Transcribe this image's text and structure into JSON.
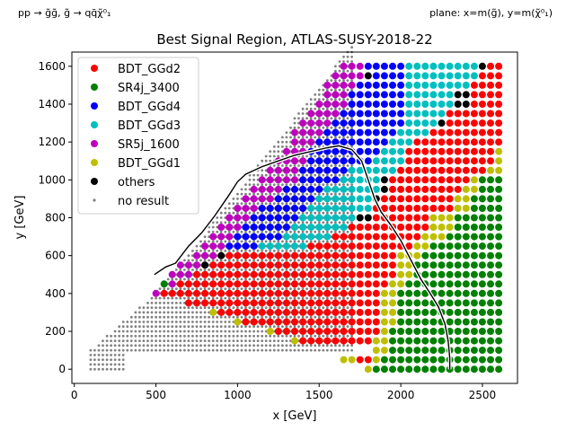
{
  "header": {
    "left_note": "pp → g̃g̃, g̃ → qq̄χ̃⁰₁",
    "right_note": "plane: x=m(g̃), y=m(χ̃⁰₁)"
  },
  "chart_data": {
    "type": "scatter",
    "title": "Best Signal Region, ATLAS-SUSY-2018-22",
    "xlabel": "x [GeV]",
    "ylabel": "y [GeV]",
    "xlim": [
      -15,
      2715
    ],
    "ylim": [
      -75,
      1675
    ],
    "xticks": [
      0,
      500,
      1000,
      1500,
      2000,
      2500
    ],
    "yticks": [
      0,
      200,
      400,
      600,
      800,
      1000,
      1200,
      1400,
      1600
    ],
    "grid": false,
    "legend_position": "top-left",
    "colors": {
      "BDT_GGd2": "#ff0000",
      "SR4j_3400": "#008000",
      "BDT_GGd4": "#0000ff",
      "BDT_GGd3": "#00bfbf",
      "SR5j_1600": "#bf00bf",
      "BDT_GGd1": "#bfbf00",
      "others": "#000000",
      "no result": "#808080",
      "exclusion_line": "#000000"
    },
    "legend": [
      "BDT_GGd2",
      "SR4j_3400",
      "BDT_GGd4",
      "BDT_GGd3",
      "SR5j_1600",
      "BDT_GGd1",
      "others",
      "no result"
    ],
    "grid_x_start": 500,
    "grid_x_end": 2600,
    "grid_y_start": 0,
    "grid_y_end": 1600,
    "grid_step": 50,
    "region_rows": [
      {
        "y": 1600,
        "segments": [
          [
            "SR5j_1600",
            1650,
            1750
          ],
          [
            "BDT_GGd4",
            1800,
            2000
          ],
          [
            "BDT_GGd3",
            2050,
            2450
          ],
          [
            "others",
            2500,
            2500
          ],
          [
            "BDT_GGd2",
            2550,
            2600
          ]
        ]
      },
      {
        "y": 1550,
        "segments": [
          [
            "SR5j_1600",
            1600,
            1750
          ],
          [
            "others",
            1800,
            1800
          ],
          [
            "BDT_GGd4",
            1850,
            2000
          ],
          [
            "BDT_GGd3",
            2050,
            2450
          ],
          [
            "BDT_GGd2",
            2500,
            2600
          ]
        ]
      },
      {
        "y": 1500,
        "segments": [
          [
            "SR5j_1600",
            1550,
            1700
          ],
          [
            "BDT_GGd4",
            1750,
            2000
          ],
          [
            "BDT_GGd3",
            2050,
            2400
          ],
          [
            "BDT_GGd2",
            2450,
            2600
          ]
        ]
      },
      {
        "y": 1450,
        "segments": [
          [
            "SR5j_1600",
            1550,
            1650
          ],
          [
            "BDT_GGd4",
            1700,
            2000
          ],
          [
            "BDT_GGd3",
            2050,
            2300
          ],
          [
            "others",
            2350,
            2400
          ],
          [
            "BDT_GGd2",
            2450,
            2600
          ]
        ]
      },
      {
        "y": 1400,
        "segments": [
          [
            "SR5j_1600",
            1500,
            1650
          ],
          [
            "BDT_GGd4",
            1700,
            2000
          ],
          [
            "BDT_GGd3",
            2050,
            2300
          ],
          [
            "others",
            2350,
            2400
          ],
          [
            "BDT_GGd2",
            2450,
            2600
          ]
        ]
      },
      {
        "y": 1350,
        "segments": [
          [
            "SR5j_1600",
            1450,
            1600
          ],
          [
            "BDT_GGd4",
            1650,
            2000
          ],
          [
            "BDT_GGd3",
            2050,
            2250
          ],
          [
            "BDT_GGd2",
            2300,
            2600
          ]
        ]
      },
      {
        "y": 1300,
        "segments": [
          [
            "SR5j_1600",
            1400,
            1550
          ],
          [
            "BDT_GGd4",
            1600,
            2000
          ],
          [
            "BDT_GGd3",
            2050,
            2200
          ],
          [
            "others",
            2250,
            2250
          ],
          [
            "BDT_GGd2",
            2300,
            2600
          ]
        ]
      },
      {
        "y": 1250,
        "segments": [
          [
            "SR5j_1600",
            1350,
            1500
          ],
          [
            "BDT_GGd4",
            1550,
            1950
          ],
          [
            "BDT_GGd3",
            2000,
            2150
          ],
          [
            "BDT_GGd2",
            2200,
            2600
          ]
        ]
      },
      {
        "y": 1200,
        "segments": [
          [
            "SR5j_1600",
            1350,
            1450
          ],
          [
            "BDT_GGd4",
            1500,
            1900
          ],
          [
            "BDT_GGd3",
            1950,
            2050
          ],
          [
            "BDT_GGd2",
            2100,
            2600
          ]
        ]
      },
      {
        "y": 1150,
        "segments": [
          [
            "SR5j_1600",
            1300,
            1400
          ],
          [
            "BDT_GGd4",
            1450,
            1850
          ],
          [
            "BDT_GGd3",
            1900,
            2000
          ],
          [
            "BDT_GGd2",
            2050,
            2550
          ],
          [
            "BDT_GGd1",
            2600,
            2600
          ]
        ]
      },
      {
        "y": 1100,
        "segments": [
          [
            "SR5j_1600",
            1250,
            1400
          ],
          [
            "BDT_GGd4",
            1450,
            1800
          ],
          [
            "BDT_GGd3",
            1850,
            2000
          ],
          [
            "BDT_GGd2",
            2050,
            2550
          ],
          [
            "BDT_GGd1",
            2600,
            2600
          ]
        ]
      },
      {
        "y": 1050,
        "segments": [
          [
            "SR5j_1600",
            1200,
            1350
          ],
          [
            "BDT_GGd4",
            1400,
            1650
          ],
          [
            "BDT_GGd3",
            1700,
            1950
          ],
          [
            "BDT_GGd2",
            2000,
            2500
          ],
          [
            "BDT_GGd1",
            2550,
            2600
          ]
        ]
      },
      {
        "y": 1000,
        "segments": [
          [
            "SR5j_1600",
            1150,
            1350
          ],
          [
            "BDT_GGd4",
            1400,
            1600
          ],
          [
            "BDT_GGd3",
            1650,
            1850
          ],
          [
            "others",
            1900,
            1900
          ],
          [
            "BDT_GGd2",
            1950,
            2400
          ],
          [
            "BDT_GGd1",
            2450,
            2450
          ],
          [
            "SR4j_3400",
            2500,
            2600
          ]
        ]
      },
      {
        "y": 950,
        "segments": [
          [
            "SR5j_1600",
            1100,
            1250
          ],
          [
            "BDT_GGd4",
            1300,
            1500
          ],
          [
            "BDT_GGd3",
            1550,
            1850
          ],
          [
            "others",
            1900,
            1900
          ],
          [
            "BDT_GGd2",
            1950,
            2350
          ],
          [
            "BDT_GGd1",
            2400,
            2450
          ],
          [
            "SR4j_3400",
            2500,
            2600
          ]
        ]
      },
      {
        "y": 900,
        "segments": [
          [
            "SR5j_1600",
            1050,
            1200
          ],
          [
            "BDT_GGd4",
            1250,
            1450
          ],
          [
            "BDT_GGd3",
            1500,
            1800
          ],
          [
            "others",
            1850,
            1850
          ],
          [
            "BDT_GGd2",
            1900,
            2300
          ],
          [
            "BDT_GGd1",
            2350,
            2400
          ],
          [
            "SR4j_3400",
            2450,
            2600
          ]
        ]
      },
      {
        "y": 850,
        "segments": [
          [
            "SR5j_1600",
            1000,
            1100
          ],
          [
            "BDT_GGd4",
            1150,
            1400
          ],
          [
            "BDT_GGd3",
            1450,
            1800
          ],
          [
            "BDT_GGd2",
            1850,
            2300
          ],
          [
            "BDT_GGd1",
            2350,
            2400
          ],
          [
            "SR4j_3400",
            2450,
            2600
          ]
        ]
      },
      {
        "y": 800,
        "segments": [
          [
            "SR5j_1600",
            950,
            1050
          ],
          [
            "BDT_GGd4",
            1100,
            1350
          ],
          [
            "BDT_GGd3",
            1400,
            1700
          ],
          [
            "others",
            1750,
            1800
          ],
          [
            "BDT_GGd2",
            1850,
            2150
          ],
          [
            "BDT_GGd1",
            2200,
            2300
          ],
          [
            "SR4j_3400",
            2350,
            2600
          ]
        ]
      },
      {
        "y": 750,
        "segments": [
          [
            "SR5j_1600",
            900,
            1000
          ],
          [
            "BDT_GGd4",
            1050,
            1300
          ],
          [
            "BDT_GGd3",
            1350,
            1650
          ],
          [
            "BDT_GGd2",
            1700,
            2150
          ],
          [
            "BDT_GGd1",
            2200,
            2300
          ],
          [
            "SR4j_3400",
            2350,
            2600
          ]
        ]
      },
      {
        "y": 700,
        "segments": [
          [
            "SR5j_1600",
            850,
            950
          ],
          [
            "BDT_GGd4",
            1000,
            1250
          ],
          [
            "BDT_GGd3",
            1300,
            1550
          ],
          [
            "BDT_GGd2",
            1600,
            2100
          ],
          [
            "BDT_GGd1",
            2150,
            2250
          ],
          [
            "SR4j_3400",
            2300,
            2600
          ]
        ]
      },
      {
        "y": 650,
        "segments": [
          [
            "SR5j_1600",
            800,
            900
          ],
          [
            "BDT_GGd4",
            950,
            1100
          ],
          [
            "BDT_GGd3",
            1150,
            1400
          ],
          [
            "BDT_GGd2",
            1450,
            2050
          ],
          [
            "BDT_GGd1",
            2100,
            2150
          ],
          [
            "SR4j_3400",
            2200,
            2600
          ]
        ]
      },
      {
        "y": 600,
        "segments": [
          [
            "SR5j_1600",
            750,
            850
          ],
          [
            "others",
            900,
            900
          ],
          [
            "BDT_GGd2",
            950,
            1950
          ],
          [
            "BDT_GGd1",
            2000,
            2100
          ],
          [
            "SR4j_3400",
            2150,
            2600
          ]
        ]
      },
      {
        "y": 550,
        "segments": [
          [
            "SR5j_1600",
            650,
            750
          ],
          [
            "others",
            800,
            800
          ],
          [
            "BDT_GGd2",
            850,
            1950
          ],
          [
            "BDT_GGd1",
            2000,
            2050
          ],
          [
            "SR4j_3400",
            2100,
            2600
          ]
        ]
      },
      {
        "y": 500,
        "segments": [
          [
            "SR5j_1600",
            600,
            700
          ],
          [
            "BDT_GGd2",
            750,
            1950
          ],
          [
            "BDT_GGd1",
            2000,
            2050
          ],
          [
            "SR4j_3400",
            2100,
            2600
          ]
        ]
      },
      {
        "y": 450,
        "segments": [
          [
            "SR4j_3400",
            550,
            550
          ],
          [
            "SR5j_1600",
            600,
            600
          ],
          [
            "BDT_GGd2",
            650,
            1900
          ],
          [
            "BDT_GGd1",
            1950,
            2000
          ],
          [
            "SR4j_3400",
            2050,
            2600
          ]
        ]
      },
      {
        "y": 400,
        "segments": [
          [
            "SR5j_1600",
            500,
            500
          ],
          [
            "BDT_GGd2",
            550,
            1850
          ],
          [
            "BDT_GGd1",
            1900,
            1950
          ],
          [
            "SR4j_3400",
            2000,
            2600
          ]
        ]
      },
      {
        "y": 350,
        "segments": [
          [
            "BDT_GGd2",
            700,
            1850
          ],
          [
            "BDT_GGd1",
            1900,
            1950
          ],
          [
            "SR4j_3400",
            2000,
            2600
          ]
        ]
      },
      {
        "y": 300,
        "segments": [
          [
            "BDT_GGd1",
            850,
            850
          ],
          [
            "BDT_GGd2",
            900,
            1850
          ],
          [
            "BDT_GGd1",
            1900,
            1950
          ],
          [
            "SR4j_3400",
            2000,
            2600
          ]
        ]
      },
      {
        "y": 250,
        "segments": [
          [
            "BDT_GGd1",
            1000,
            1000
          ],
          [
            "BDT_GGd2",
            1050,
            1850
          ],
          [
            "BDT_GGd1",
            1900,
            1950
          ],
          [
            "SR4j_3400",
            2000,
            2600
          ]
        ]
      },
      {
        "y": 200,
        "segments": [
          [
            "BDT_GGd1",
            1200,
            1200
          ],
          [
            "BDT_GGd2",
            1250,
            1850
          ],
          [
            "BDT_GGd1",
            1900,
            1900
          ],
          [
            "SR4j_3400",
            1950,
            2600
          ]
        ]
      },
      {
        "y": 150,
        "segments": [
          [
            "BDT_GGd1",
            1350,
            1350
          ],
          [
            "BDT_GGd2",
            1400,
            1800
          ],
          [
            "BDT_GGd1",
            1850,
            1900
          ],
          [
            "SR4j_3400",
            1950,
            2600
          ]
        ]
      },
      {
        "y": 100,
        "segments": [
          [
            "BDT_GGd1",
            1850,
            1900
          ],
          [
            "SR4j_3400",
            1950,
            2600
          ]
        ]
      },
      {
        "y": 50,
        "segments": [
          [
            "BDT_GGd1",
            1650,
            1700
          ],
          [
            "BDT_GGd2",
            1750,
            1800
          ],
          [
            "BDT_GGd1",
            1850,
            1850
          ],
          [
            "SR4j_3400",
            1900,
            2600
          ]
        ]
      },
      {
        "y": 0,
        "segments": [
          [
            "BDT_GGd1",
            1800,
            1800
          ],
          [
            "SR4j_3400",
            1850,
            2600
          ]
        ]
      }
    ],
    "no_result_region": {
      "step": 25,
      "x_start": 100,
      "lower_boundary": [
        [
          100,
          0
        ],
        [
          300,
          0
        ],
        [
          300,
          100
        ],
        [
          1850,
          100
        ]
      ],
      "upper_boundary": [
        [
          100,
          100
        ],
        [
          500,
          400
        ],
        [
          550,
          450
        ],
        [
          1600,
          1600
        ],
        [
          1700,
          1700
        ]
      ]
    },
    "exclusion_line": [
      [
        490,
        500
      ],
      [
        560,
        540
      ],
      [
        620,
        560
      ],
      [
        700,
        650
      ],
      [
        780,
        720
      ],
      [
        860,
        810
      ],
      [
        940,
        910
      ],
      [
        1000,
        990
      ],
      [
        1050,
        1030
      ],
      [
        1150,
        1070
      ],
      [
        1250,
        1100
      ],
      [
        1350,
        1130
      ],
      [
        1450,
        1150
      ],
      [
        1550,
        1170
      ],
      [
        1620,
        1180
      ],
      [
        1700,
        1160
      ],
      [
        1760,
        1100
      ],
      [
        1800,
        1000
      ],
      [
        1840,
        900
      ],
      [
        1880,
        830
      ],
      [
        1940,
        760
      ],
      [
        2000,
        680
      ],
      [
        2060,
        580
      ],
      [
        2120,
        480
      ],
      [
        2180,
        400
      ],
      [
        2230,
        330
      ],
      [
        2270,
        240
      ],
      [
        2290,
        150
      ],
      [
        2300,
        60
      ],
      [
        2300,
        0
      ]
    ]
  }
}
